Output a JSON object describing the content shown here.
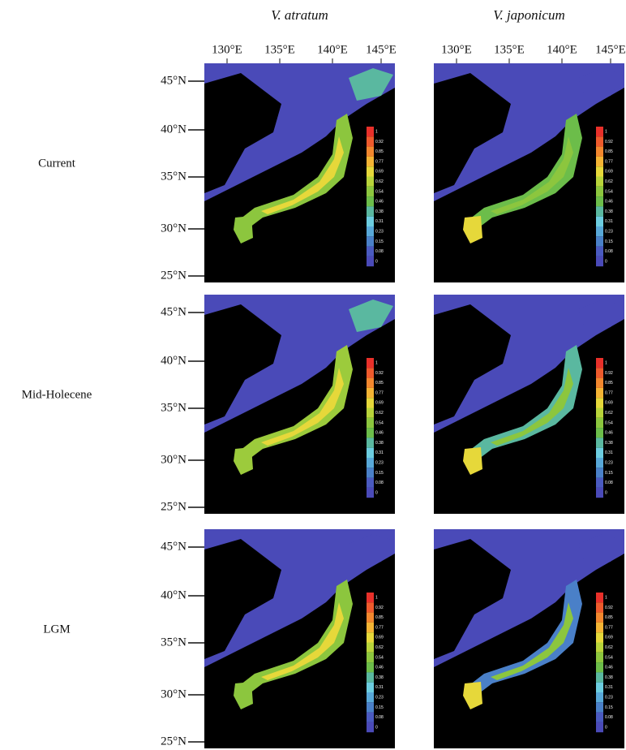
{
  "columns": [
    {
      "title": "V. atratum",
      "xticks": [
        "130°E",
        "135°E",
        "140°E",
        "145°E"
      ]
    },
    {
      "title": "V. japonicum",
      "xticks": [
        "130°E",
        "135°E",
        "140°E",
        "145°E"
      ]
    }
  ],
  "rows": [
    {
      "label": "Current",
      "yticks": [
        "45°N",
        "40°N",
        "35°N",
        "30°N",
        "25°N"
      ]
    },
    {
      "label": "Mid-Holecene",
      "yticks": [
        "45°N",
        "40°N",
        "35°N",
        "30°N",
        "25°N"
      ]
    },
    {
      "label": "LGM",
      "yticks": [
        "45°N",
        "40°N",
        "35°N",
        "30°N",
        "25°N"
      ]
    }
  ],
  "colorbar": {
    "labels": [
      "1",
      "0.92",
      "0.85",
      "0.77",
      "0.69",
      "0.62",
      "0.54",
      "0.46",
      "0.38",
      "0.31",
      "0.23",
      "0.15",
      "0.08",
      "0"
    ],
    "colors": [
      "#e8302a",
      "#ee5a2c",
      "#f2872e",
      "#f4b434",
      "#e6d83a",
      "#b8d43a",
      "#8cc63e",
      "#6cbd4a",
      "#5ab8a0",
      "#6ccde0",
      "#58a8d8",
      "#4a80c8",
      "#4a5ac0",
      "#4a4ab8"
    ]
  }
}
